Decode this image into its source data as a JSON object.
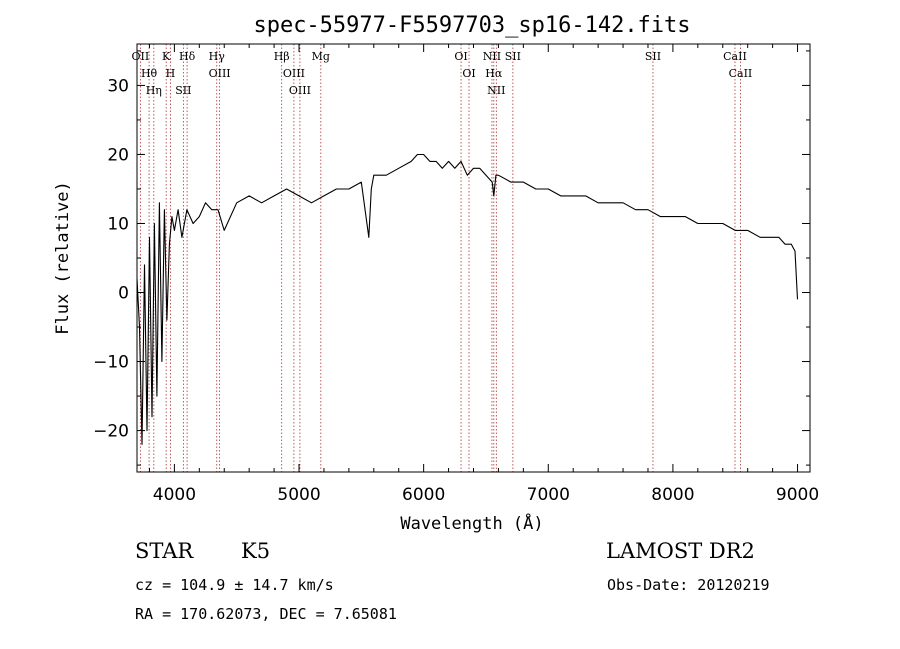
{
  "chart_data": {
    "type": "line",
    "title": "spec-55977-F5597703_sp16-142.fits",
    "xlabel": "Wavelength (Å)",
    "ylabel": "Flux (relative)",
    "xlim": [
      3700,
      9100
    ],
    "ylim": [
      -26,
      36
    ],
    "xticks": [
      4000,
      5000,
      6000,
      7000,
      8000,
      9000
    ],
    "yticks": [
      -20,
      -10,
      0,
      10,
      20,
      30
    ],
    "series": [
      {
        "x": [
          3700,
          3720,
          3740,
          3760,
          3780,
          3800,
          3820,
          3840,
          3860,
          3880,
          3900,
          3920,
          3940,
          3960,
          3980,
          4000,
          4030,
          4060,
          4100,
          4150,
          4200,
          4250,
          4300,
          4350,
          4400,
          4500,
          4600,
          4700,
          4800,
          4900,
          5000,
          5100,
          5200,
          5300,
          5400,
          5500,
          5560,
          5580,
          5600,
          5700,
          5800,
          5900,
          5950,
          6000,
          6050,
          6100,
          6150,
          6200,
          6250,
          6300,
          6350,
          6400,
          6450,
          6500,
          6550,
          6563,
          6580,
          6600,
          6700,
          6800,
          6900,
          7000,
          7100,
          7200,
          7300,
          7400,
          7500,
          7600,
          7700,
          7800,
          7900,
          8000,
          8100,
          8200,
          8300,
          8400,
          8500,
          8600,
          8700,
          8800,
          8850,
          8900,
          8950,
          8980,
          9000
        ],
        "values": [
          2,
          -5,
          -22,
          4,
          -20,
          8,
          -18,
          10,
          -15,
          13,
          -10,
          12,
          -4,
          7,
          11,
          9,
          12,
          8,
          12,
          10,
          11,
          13,
          12,
          12,
          9,
          13,
          14,
          13,
          14,
          15,
          14,
          13,
          14,
          15,
          15,
          16,
          8,
          15,
          17,
          17,
          18,
          19,
          20,
          20,
          19,
          19,
          18,
          19,
          18,
          19,
          17,
          18,
          18,
          17,
          16,
          14,
          17,
          17,
          16,
          16,
          15,
          15,
          14,
          14,
          14,
          13,
          13,
          13,
          12,
          12,
          11,
          11,
          11,
          10,
          10,
          10,
          9,
          9,
          8,
          8,
          8,
          7,
          7,
          6,
          -1
        ]
      }
    ],
    "emission_lines": [
      {
        "label": "Hθ",
        "wavelength": 3797
      },
      {
        "label": "OII",
        "wavelength": 3727
      },
      {
        "label": "Hη",
        "wavelength": 3835
      },
      {
        "label": "H",
        "wavelength": 3968
      },
      {
        "label": "K",
        "wavelength": 3934
      },
      {
        "label": "SII",
        "wavelength": 4072
      },
      {
        "label": "Hδ",
        "wavelength": 4102
      },
      {
        "label": "Hγ",
        "wavelength": 4340
      },
      {
        "label": "OIII",
        "wavelength": 4363
      },
      {
        "label": "Hβ",
        "wavelength": 4861
      },
      {
        "label": "OIII",
        "wavelength": 4959
      },
      {
        "label": "OIII",
        "wavelength": 5007
      },
      {
        "label": "Mg",
        "wavelength": 5175
      },
      {
        "label": "OI",
        "wavelength": 6300
      },
      {
        "label": "OI",
        "wavelength": 6364
      },
      {
        "label": "NII",
        "wavelength": 6548
      },
      {
        "label": "Hα",
        "wavelength": 6563
      },
      {
        "label": "NII",
        "wavelength": 6583
      },
      {
        "label": "SII",
        "wavelength": 6716
      },
      {
        "label": "SII",
        "wavelength": 7840
      },
      {
        "label": "CaII",
        "wavelength": 8498
      },
      {
        "label": "CaII",
        "wavelength": 8542
      }
    ]
  },
  "info": {
    "class": "STAR",
    "subclass": "K5",
    "survey": "LAMOST DR2",
    "redshift": "cz = 104.9 ± 14.7 km/s",
    "obs_date": "Obs-Date: 20120219",
    "coords": "RA = 170.62073, DEC =   7.65081"
  }
}
